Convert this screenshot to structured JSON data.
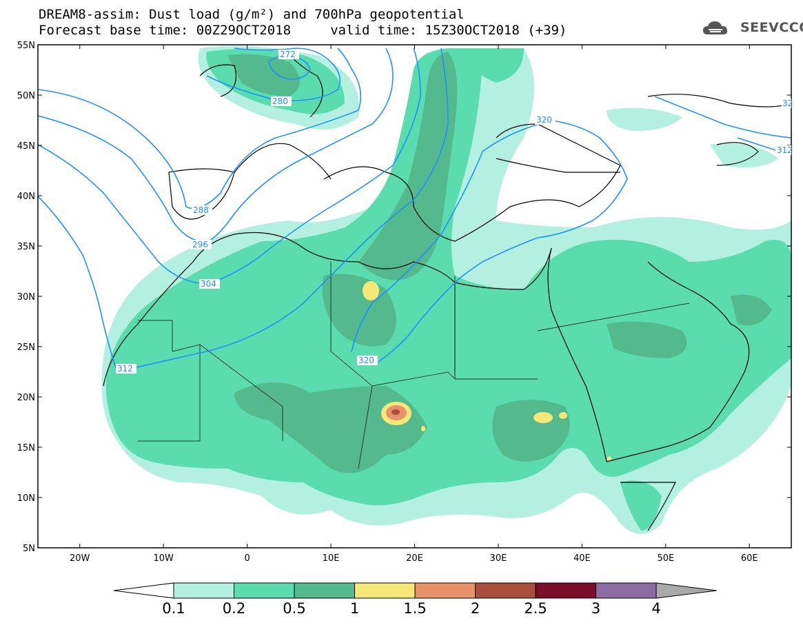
{
  "header": {
    "title_line1": "DREAM8-assim: Dust load (g/m²) and 700hPa geopotential",
    "title_line2": "Forecast base time: 00Z29OCT2018     valid time: 15Z30OCT2018 (+39)",
    "logo_text": "SEEVCCC"
  },
  "map": {
    "lat_labels": [
      "55N",
      "50N",
      "45N",
      "40N",
      "35N",
      "30N",
      "25N",
      "20N",
      "15N",
      "10N",
      "5N"
    ],
    "lon_labels": [
      "20W",
      "10W",
      "0",
      "10E",
      "20E",
      "30E",
      "40E",
      "50E",
      "60E"
    ],
    "lat_range": [
      5,
      55
    ],
    "lon_range": [
      -25,
      65
    ],
    "isohypse_labels": [
      "272",
      "280",
      "288",
      "296",
      "304",
      "312",
      "320",
      "320",
      "312",
      "32"
    ],
    "colors": {
      "frame": "#000000",
      "coast": "#000000",
      "isohypse": "#1e90ff"
    }
  },
  "colorbar": {
    "labels": [
      "0.1",
      "0.2",
      "0.5",
      "1",
      "1.5",
      "2",
      "2.5",
      "3",
      "4"
    ],
    "colors": [
      "#b4f0e0",
      "#5adcae",
      "#55b98e",
      "#f5e878",
      "#e8916a",
      "#a94e3c",
      "#7a0f2c",
      "#8e6aa4"
    ],
    "under_color": "#ffffff",
    "over_color": "#aaaaaa"
  }
}
